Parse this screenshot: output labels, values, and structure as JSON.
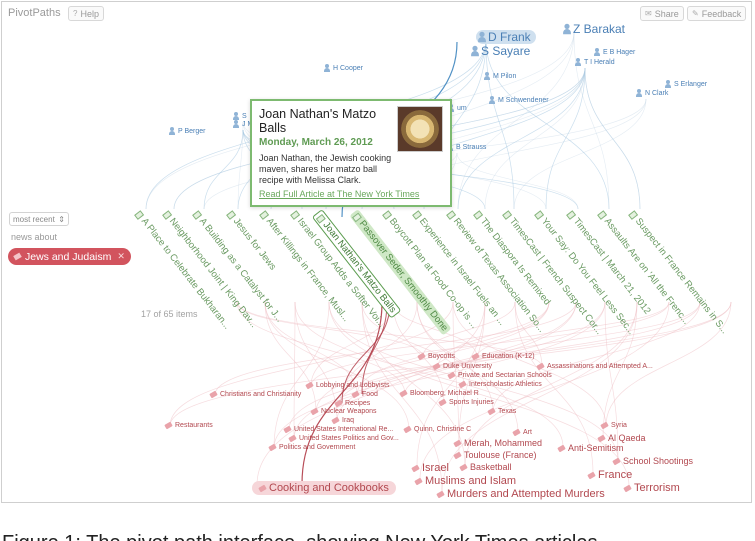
{
  "app": {
    "title": "PivotPaths",
    "help_label": "Help",
    "share_label": "Share",
    "feedback_label": "Feedback"
  },
  "people": [
    {
      "name": "D Frank",
      "size": 12,
      "highlight": true
    },
    {
      "name": "S Sayare",
      "size": 12
    },
    {
      "name": "Z Barakat",
      "size": 12
    },
    {
      "name": "H Cooper",
      "size": 7
    },
    {
      "name": "E B Hager",
      "size": 7
    },
    {
      "name": "T I Herald",
      "size": 7
    },
    {
      "name": "M Pilon",
      "size": 7
    },
    {
      "name": "S Erlanger",
      "size": 7
    },
    {
      "name": "N Clark",
      "size": 7
    },
    {
      "name": "M Schwendener",
      "size": 7
    },
    {
      "name": "J Mc",
      "size": 7
    },
    {
      "name": "S",
      "size": 7
    },
    {
      "name": "um",
      "size": 7
    },
    {
      "name": "P Berger",
      "size": 7
    },
    {
      "name": "B Strauss",
      "size": 7
    }
  ],
  "articles": [
    {
      "title": "A Place to Celebrate Bukharan...",
      "state": ""
    },
    {
      "title": "Neighborhood Joint | King Dav...",
      "state": ""
    },
    {
      "title": "A Building as a Catalyst for J...",
      "state": ""
    },
    {
      "title": "Jesus for Jews",
      "state": ""
    },
    {
      "title": "After Killings in France, Musl...",
      "state": ""
    },
    {
      "title": "Israel Group Adds a Softer Voi...",
      "state": ""
    },
    {
      "title": "Joan Nathan's Matzo Balls",
      "state": "sel"
    },
    {
      "title": "Passover Seder, Smoothly Done",
      "state": "hl"
    },
    {
      "title": "Boycott Plan at Food Co-op is ...",
      "state": ""
    },
    {
      "title": "Experience in Israel Fuels an ...",
      "state": ""
    },
    {
      "title": "Review of Texas Association So...",
      "state": ""
    },
    {
      "title": "The Diaspora Is Remixed",
      "state": ""
    },
    {
      "title": "TimesCast | French Suspect Cor...",
      "state": ""
    },
    {
      "title": "Your Say: Do You Feel Less Sec...",
      "state": ""
    },
    {
      "title": "TimesCast | March 21, 2012",
      "state": ""
    },
    {
      "title": "Assaults Are on 'All the Frenc...",
      "state": ""
    },
    {
      "title": "Suspect in France Remains in S...",
      "state": ""
    }
  ],
  "tags": [
    {
      "name": "Boycotts",
      "size": 7
    },
    {
      "name": "Education (K-12)",
      "size": 7
    },
    {
      "name": "Duke University",
      "size": 7
    },
    {
      "name": "Private and Sectarian Schools",
      "size": 7
    },
    {
      "name": "Interscholastic Athletics",
      "size": 7
    },
    {
      "name": "Assassinations and Attempted A...",
      "size": 7
    },
    {
      "name": "Lobbying and Lobbyists",
      "size": 7
    },
    {
      "name": "Food",
      "size": 7
    },
    {
      "name": "Recipes",
      "size": 7
    },
    {
      "name": "Christians and Christianity",
      "size": 7
    },
    {
      "name": "Bloomberg, Michael R",
      "size": 7
    },
    {
      "name": "Sports Injuries",
      "size": 7
    },
    {
      "name": "Nuclear Weapons",
      "size": 7
    },
    {
      "name": "Texas",
      "size": 7
    },
    {
      "name": "Iraq",
      "size": 7
    },
    {
      "name": "Restaurants",
      "size": 7
    },
    {
      "name": "United States International Re...",
      "size": 7
    },
    {
      "name": "Quinn, Christine C",
      "size": 7
    },
    {
      "name": "Art",
      "size": 7
    },
    {
      "name": "United States Politics and Gov...",
      "size": 7
    },
    {
      "name": "Syria",
      "size": 7
    },
    {
      "name": "Politics and Government",
      "size": 7
    },
    {
      "name": "Merah, Mohammed",
      "size": 9
    },
    {
      "name": "Al Qaeda",
      "size": 9
    },
    {
      "name": "Anti-Semitism",
      "size": 9
    },
    {
      "name": "Toulouse (France)",
      "size": 9
    },
    {
      "name": "School Shootings",
      "size": 9
    },
    {
      "name": "Israel",
      "size": 11
    },
    {
      "name": "Basketball",
      "size": 9
    },
    {
      "name": "France",
      "size": 11
    },
    {
      "name": "Muslims and Islam",
      "size": 11
    },
    {
      "name": "Terrorism",
      "size": 11
    },
    {
      "name": "Cooking and Cookbooks",
      "size": 11,
      "highlight": true
    },
    {
      "name": "Murders and Attempted Murders",
      "size": 11
    }
  ],
  "controls": {
    "sort_value": "most recent",
    "news_about": "news about",
    "filter_tag": "Jews and Judaism",
    "items_count": "17 of 65 items"
  },
  "popup": {
    "title": "Joan Nathan's Matzo Balls",
    "date": "Monday, March 26, 2012",
    "description": "Joan Nathan, the Jewish cooking maven, shares her matzo ball recipe with Melissa Clark.",
    "link": "Read Full Article at The New York Times"
  },
  "caption": "Figure 1: The pivot path interface, showing New York Times articles..."
}
